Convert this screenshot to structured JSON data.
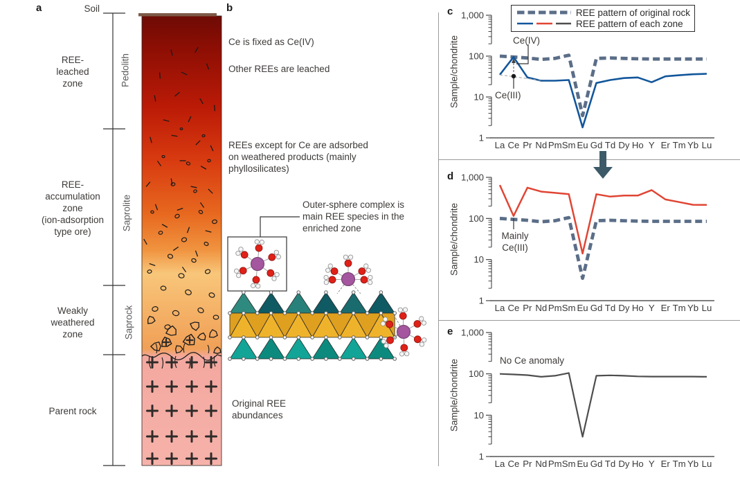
{
  "figure": {
    "panel_labels": {
      "a": "a",
      "b": "b",
      "c": "c",
      "d": "d",
      "e": "e"
    }
  },
  "panel_a": {
    "soil_label": "Soil",
    "zones": [
      {
        "label": "REE-\nleached\nzone"
      },
      {
        "label": "REE-\naccumulation\nzone\n(ion-adsorption\ntype ore)"
      },
      {
        "label": "Weakly\nweathered\nzone"
      },
      {
        "label": "Parent rock"
      }
    ],
    "lithology": [
      "Pedolith",
      "Saprolite",
      "Saprock"
    ]
  },
  "panel_b": {
    "note_top1": "Ce is fixed as Ce(IV)",
    "note_top2": "Other REEs are leached",
    "note_mid": "REEs except for Ce are adsorbed\non weathered products (mainly\nphyllosilicates)",
    "callout": "Outer-sphere complex is\nmain REE species in the\nenriched zone",
    "note_bottom": "Original REE\nabundances"
  },
  "chart_data": {
    "type": "line",
    "yscale": "log",
    "ylim": [
      1,
      1000
    ],
    "ylabel": "Sample/chondrite",
    "yticks": [
      "1,000",
      "100",
      "10",
      "1"
    ],
    "x_categories": [
      "La",
      "Ce",
      "Pr",
      "Nd",
      "Pm",
      "Sm",
      "Eu",
      "Gd",
      "Td",
      "Dy",
      "Ho",
      "Y",
      "Er",
      "Tm",
      "Yb",
      "Lu"
    ],
    "legend": {
      "original_rock": "REE pattern of original rock",
      "each_zone": "REE pattern of each zone"
    },
    "original_rock_values": [
      100,
      95,
      90,
      83,
      88,
      105,
      3.5,
      88,
      90,
      88,
      86,
      85,
      85,
      85,
      85,
      85
    ],
    "colors": {
      "original_rock": "#5b6e88",
      "leached": "#12569b",
      "accumulation": "#e04534",
      "parent": "#4d4d4d"
    },
    "panels": {
      "c": {
        "values": [
          35,
          95,
          30,
          25,
          25,
          26,
          1.8,
          22,
          26,
          29,
          30,
          23,
          32,
          34,
          36,
          37
        ],
        "annotations": {
          "ce_iv": "Ce(IV)",
          "ce_iii": "Ce(III)"
        }
      },
      "d": {
        "values": [
          650,
          115,
          560,
          450,
          420,
          390,
          14,
          390,
          340,
          360,
          360,
          490,
          290,
          250,
          215,
          213
        ],
        "annotations": {
          "mainly": "Mainly\nCe(III)"
        }
      },
      "e": {
        "values": [
          100,
          97,
          93,
          85,
          90,
          105,
          3,
          90,
          92,
          90,
          87,
          86,
          86,
          86,
          86,
          85
        ],
        "annotations": {
          "note": "No Ce anomaly"
        }
      }
    }
  }
}
